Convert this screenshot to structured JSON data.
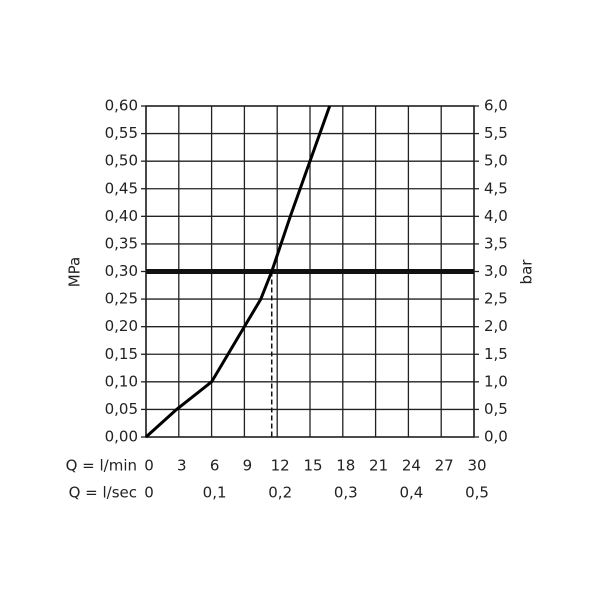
{
  "chart_data": {
    "type": "line",
    "y_label": "MPa",
    "y2_label": "bar",
    "x_label": "Q = l/min",
    "x2_label": "Q = l/sec",
    "series": [
      {
        "color": "#000000",
        "x": [
          0,
          2.8,
          6,
          7.5,
          9,
          10.5,
          11.5,
          13.2,
          15,
          16.8
        ],
        "values": [
          0,
          0.05,
          0.1,
          0.15,
          0.2,
          0.25,
          0.3,
          0.4,
          0.5,
          0.6
        ]
      }
    ],
    "hline": 0.3,
    "vline": 11.5,
    "xlim": [
      0,
      30
    ],
    "xticks": [
      0,
      3,
      6,
      9,
      12,
      15,
      18,
      21,
      24,
      27,
      30
    ],
    "x2lim": [
      0,
      0.5
    ],
    "x2ticks": [
      0,
      {
        "value": 0.1,
        "label": "0,1"
      },
      {
        "value": 0.2,
        "label": "0,2"
      },
      {
        "value": 0.3,
        "label": "0,3"
      },
      {
        "value": 0.4,
        "label": "0,4"
      },
      {
        "value": 0.5,
        "label": "0,5"
      }
    ],
    "ylim": [
      0,
      0.6
    ],
    "yticks": [
      {
        "value": 0,
        "label": "0,00"
      },
      {
        "value": 0.05,
        "label": "0,05"
      },
      {
        "value": 0.1,
        "label": "0,10"
      },
      {
        "value": 0.15,
        "label": "0,15"
      },
      {
        "value": 0.2,
        "label": "0,20"
      },
      {
        "value": 0.25,
        "label": "0,25"
      },
      {
        "value": 0.3,
        "label": "0,30"
      },
      {
        "value": 0.35,
        "label": "0,35"
      },
      {
        "value": 0.4,
        "label": "0,40"
      },
      {
        "value": 0.45,
        "label": "0,45"
      },
      {
        "value": 0.5,
        "label": "0,50"
      },
      {
        "value": 0.55,
        "label": "0,55"
      },
      {
        "value": 0.6,
        "label": "0,60"
      }
    ],
    "y2lim": [
      0,
      6
    ],
    "y2ticks": [
      {
        "value": 0,
        "label": "0,0"
      },
      {
        "value": 0.5,
        "label": "0,5"
      },
      {
        "value": 1,
        "label": "1,0"
      },
      {
        "value": 1.5,
        "label": "1,5"
      },
      {
        "value": 2,
        "label": "2,0"
      },
      {
        "value": 2.5,
        "label": "2,5"
      },
      {
        "value": 3,
        "label": "3,0"
      },
      {
        "value": 3.5,
        "label": "3,5"
      },
      {
        "value": 4,
        "label": "4,0"
      },
      {
        "value": 4.5,
        "label": "4,5"
      },
      {
        "value": 5,
        "label": "5,0"
      },
      {
        "value": 5.5,
        "label": "5,5"
      },
      {
        "value": 6,
        "label": "6,0"
      }
    ],
    "grid": true
  }
}
